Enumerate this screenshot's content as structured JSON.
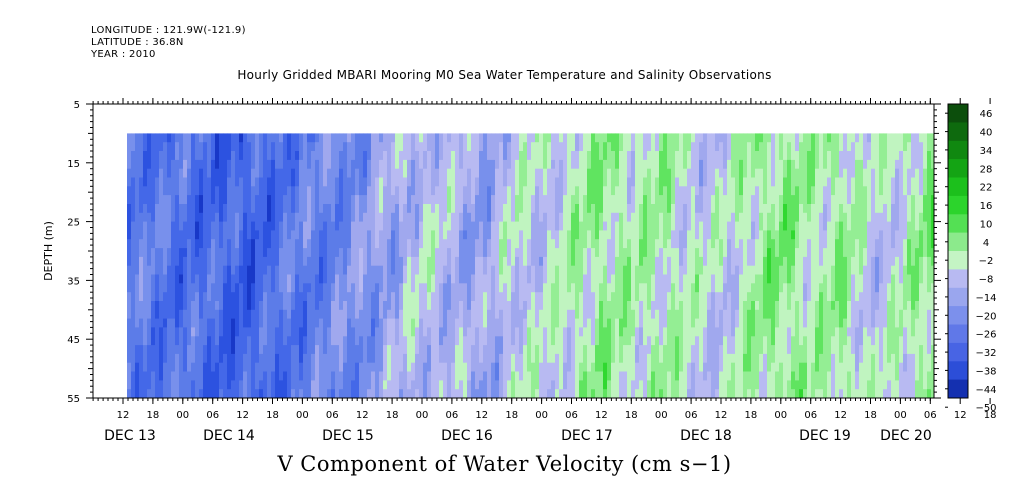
{
  "header": {
    "longitude": "LONGITUDE : 121.9W(-121.9)",
    "latitude": "LATITUDE : 36.8N",
    "year": "YEAR : 2010"
  },
  "chart_data": {
    "type": "heatmap",
    "title": "Hourly Gridded MBARI Mooring M0 Sea Water Temperature and Salinity Observations",
    "xlabel": "V Component of Water Velocity (cm s−1)",
    "ylabel": "DEPTH (m)",
    "ylim": [
      5,
      55
    ],
    "y_ticks": [
      5,
      15,
      25,
      35,
      45,
      55
    ],
    "y_inverted": true,
    "hour_ticks": [
      "12",
      "18",
      "00",
      "06",
      "12",
      "18",
      "00",
      "06",
      "12",
      "18",
      "00",
      "06",
      "12",
      "18",
      "00",
      "06",
      "12",
      "18",
      "00",
      "06",
      "12",
      "18",
      "00",
      "06",
      "12",
      "18",
      "00",
      "06",
      "12",
      "18",
      "00",
      "06"
    ],
    "date_labels": [
      "DEC 13",
      "DEC 14",
      "DEC 15",
      "DEC 16",
      "DEC 17",
      "DEC 18",
      "DEC 19",
      "DEC 20"
    ],
    "data_depth_range": [
      10,
      55
    ],
    "colorbar": {
      "levels": [
        -50,
        -44,
        -38,
        -32,
        -26,
        -20,
        -14,
        -8,
        -2,
        4,
        10,
        16,
        22,
        28,
        34,
        40,
        46
      ],
      "labels": [
        "46",
        "40",
        "34",
        "28",
        "22",
        "16",
        "10",
        "4",
        "−2",
        "−8",
        "−14",
        "−20",
        "−26",
        "−32",
        "−38",
        "−44",
        "−50"
      ]
    },
    "time_profile": [
      {
        "t": 0,
        "v": -16
      },
      {
        "t": 6,
        "v": -18
      },
      {
        "t": 12,
        "v": -20
      },
      {
        "t": 18,
        "v": -22
      },
      {
        "t": 24,
        "v": -24
      },
      {
        "t": 30,
        "v": -20
      },
      {
        "t": 36,
        "v": -16
      },
      {
        "t": 42,
        "v": -14
      },
      {
        "t": 48,
        "v": -10
      },
      {
        "t": 54,
        "v": -4
      },
      {
        "t": 60,
        "v": 2
      },
      {
        "t": 66,
        "v": -2
      },
      {
        "t": 72,
        "v": -6
      },
      {
        "t": 78,
        "v": 4
      },
      {
        "t": 84,
        "v": 2
      },
      {
        "t": 90,
        "v": 8
      },
      {
        "t": 96,
        "v": 12
      },
      {
        "t": 102,
        "v": 8
      },
      {
        "t": 108,
        "v": 10
      },
      {
        "t": 114,
        "v": 4
      },
      {
        "t": 120,
        "v": 2
      },
      {
        "t": 126,
        "v": 10
      },
      {
        "t": 132,
        "v": 14
      },
      {
        "t": 138,
        "v": 8
      },
      {
        "t": 144,
        "v": 12
      },
      {
        "t": 150,
        "v": 2
      },
      {
        "t": 156,
        "v": 6
      },
      {
        "t": 162,
        "v": 14
      },
      {
        "t": 168,
        "v": 4
      },
      {
        "t": 174,
        "v": -4
      }
    ]
  }
}
